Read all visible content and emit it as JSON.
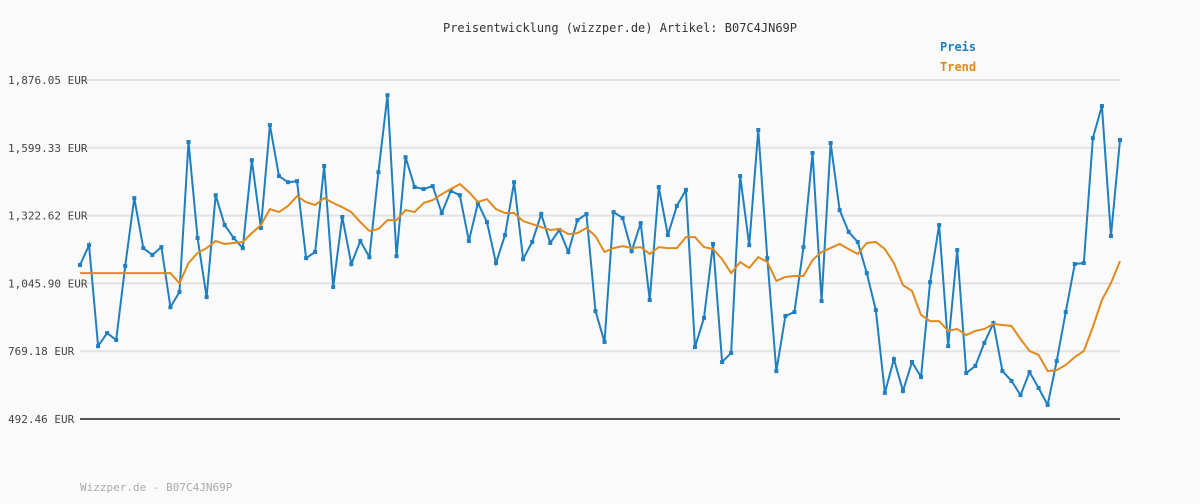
{
  "chart_data": {
    "type": "line",
    "title": "Preisentwicklung (wizzper.de) Artikel: B07C4JN69P",
    "footer": "Wizzper.de - B07C4JN69P",
    "ylim": [
      492.46,
      1876.05
    ],
    "yticks": [
      {
        "value": 492.46,
        "label": "492.46 EUR"
      },
      {
        "value": 769.18,
        "label": "769.18 EUR"
      },
      {
        "value": 1045.9,
        "label": "1,045.90 EUR"
      },
      {
        "value": 1322.62,
        "label": "1,322.62 EUR"
      },
      {
        "value": 1599.33,
        "label": "1,599.33 EUR"
      },
      {
        "value": 1876.05,
        "label": "1,876.05 EUR"
      }
    ],
    "grid": true,
    "legend": "top-right",
    "series": [
      {
        "name": "Preis",
        "color": "#1f7fbf",
        "markers": true,
        "values": [
          1121,
          1202,
          790,
          843,
          815,
          1117,
          1394,
          1190,
          1162,
          1194,
          949,
          1011,
          1623,
          1231,
          990,
          1406,
          1284,
          1231,
          1190,
          1549,
          1272,
          1692,
          1484,
          1459,
          1463,
          1149,
          1174,
          1525,
          1031,
          1317,
          1125,
          1219,
          1153,
          1500,
          1814,
          1157,
          1561,
          1439,
          1431,
          1443,
          1333,
          1423,
          1406,
          1219,
          1374,
          1296,
          1129,
          1243,
          1459,
          1145,
          1215,
          1329,
          1211,
          1264,
          1174,
          1304,
          1329,
          933,
          807,
          1337,
          1313,
          1178,
          1292,
          978,
          1439,
          1243,
          1362,
          1427,
          786,
          905,
          1207,
          725,
          762,
          1484,
          1202,
          1672,
          1149,
          688,
          913,
          929,
          1194,
          1578,
          974,
          1619,
          1345,
          1256,
          1215,
          1088,
          937,
          599,
          737,
          607,
          725,
          664,
          1051,
          1284,
          790,
          1182,
          680,
          709,
          803,
          884,
          688,
          648,
          590,
          684,
          619,
          550,
          729,
          929,
          1125,
          1129,
          1639,
          1770,
          1239,
          1631
        ]
      },
      {
        "name": "Trend",
        "color": "#e08a1e",
        "markers": false,
        "values": [
          1088,
          1088,
          1088,
          1088,
          1088,
          1088,
          1088,
          1088,
          1088,
          1088,
          1088,
          1047,
          1129,
          1170,
          1190,
          1219,
          1207,
          1211,
          1215,
          1251,
          1284,
          1349,
          1337,
          1362,
          1402,
          1378,
          1366,
          1394,
          1374,
          1357,
          1337,
          1296,
          1260,
          1268,
          1304,
          1304,
          1345,
          1337,
          1374,
          1386,
          1410,
          1431,
          1451,
          1419,
          1378,
          1390,
          1349,
          1333,
          1333,
          1300,
          1288,
          1276,
          1264,
          1268,
          1247,
          1251,
          1272,
          1239,
          1174,
          1190,
          1198,
          1190,
          1194,
          1166,
          1194,
          1190,
          1190,
          1235,
          1235,
          1194,
          1186,
          1145,
          1088,
          1133,
          1109,
          1153,
          1133,
          1056,
          1072,
          1076,
          1076,
          1141,
          1174,
          1190,
          1207,
          1186,
          1166,
          1211,
          1215,
          1186,
          1129,
          1039,
          1015,
          917,
          892,
          892,
          852,
          860,
          835,
          852,
          860,
          880,
          876,
          872,
          819,
          770,
          754,
          688,
          692,
          713,
          745,
          770,
          868,
          978,
          1047,
          1137
        ]
      }
    ]
  }
}
